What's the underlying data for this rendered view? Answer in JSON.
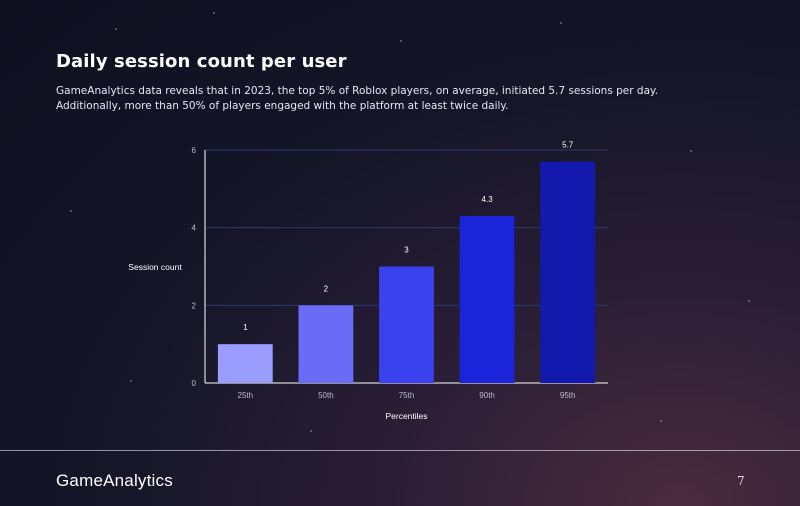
{
  "page": {
    "title": "Daily session count per user",
    "description": "GameAnalytics data reveals that in 2023, the top 5% of Roblox players, on average, initiated 5.7 sessions per day. Additionally, more than 50% of players engaged with the platform at least twice daily.",
    "brand": "GameAnalytics",
    "page_number": "7"
  },
  "colors": {
    "bar_colors": [
      "#9a9cff",
      "#6a6cf7",
      "#3a41ee",
      "#1a24d9",
      "#1219ad"
    ],
    "gridline": "#2f3a6a",
    "axis": "#ffffff",
    "tick_text": "#b9bccb",
    "label_text": "#ffffff"
  },
  "chart_data": {
    "type": "bar",
    "title": "",
    "xlabel": "Percentiles",
    "ylabel": "Session count",
    "categories": [
      "25th",
      "50th",
      "75th",
      "90th",
      "95th"
    ],
    "values": [
      1,
      2,
      3,
      4.3,
      5.7
    ],
    "value_labels": [
      "1",
      "2",
      "3",
      "4.3",
      "5.7"
    ],
    "ylim": [
      0,
      6
    ],
    "yticks": [
      0,
      2,
      4,
      6
    ],
    "grid": true,
    "legend": "none"
  }
}
